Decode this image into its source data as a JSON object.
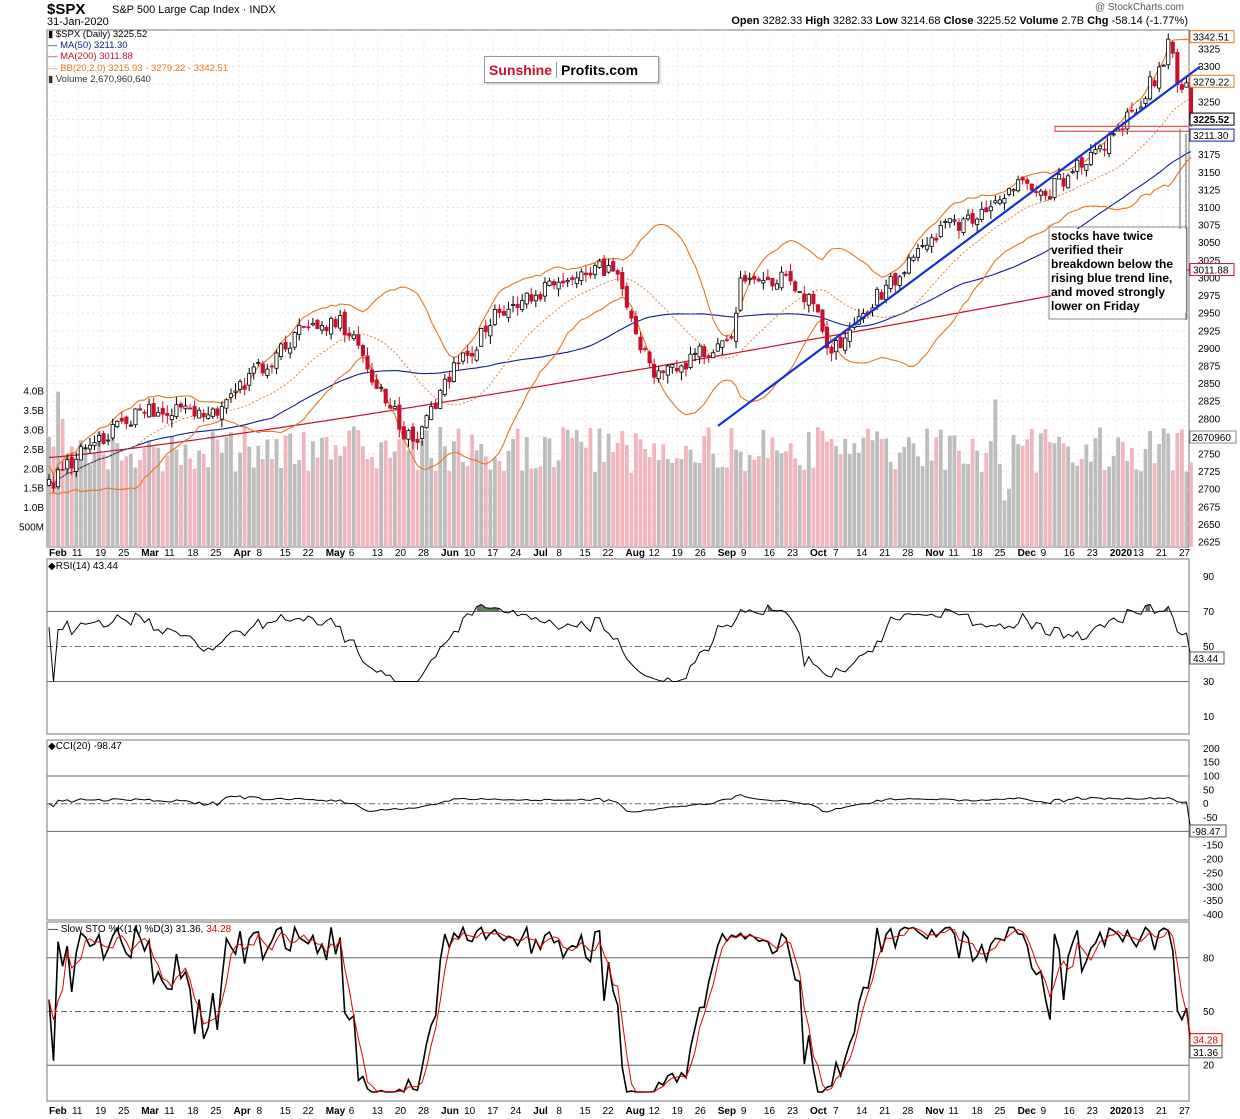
{
  "header": {
    "symbol": "$SPX",
    "name": "S&P 500 Large Cap Index",
    "exchange": "INDX",
    "date": "31-Jan-2020",
    "credit": "@ StockCharts.com",
    "ohlc_label": {
      "open": "Open",
      "high": "High",
      "low": "Low",
      "close": "Close",
      "volume": "Volume",
      "chg": "Chg"
    },
    "ohlc": {
      "open": "3282.33",
      "high": "3282.33",
      "low": "3214.68",
      "close": "3225.52",
      "volume": "2.7B",
      "chg": "-58.14 (-1.77%)"
    }
  },
  "legend": {
    "price": "$SPX (Daily) 3225.52",
    "ma50": "MA(50) 3211.30",
    "ma200": "MA(200) 3011.88",
    "bb": "BB(20,2.0) 3215.93 - 3279.22 - 3342.51",
    "volume": "Volume 2,670,960,640"
  },
  "logo": {
    "part1": "Sunshine",
    "part2": "Profits.com"
  },
  "annotation": "stocks have twice verified their breakdown below the rising blue trend line, and moved strongly lower on Friday",
  "panels": {
    "rsi_title": "RSI(14) 43.44",
    "cci_title": "CCI(20) -98.47",
    "sto_title": "Slow STO %K(14) %D(3) 31.36,",
    "sto_title_d": "34.28"
  },
  "colors": {
    "up": "#000000",
    "down": "#c8102e",
    "ma50": "#0b1f8f",
    "ma200": "#c8102e",
    "bb": "#e8741b",
    "trend": "#1230d8",
    "vol_up": "#bdbdbd",
    "vol_down": "#f1b6bd",
    "osc_pos": "#5a7d52",
    "osc_neg": "#7c4a48",
    "sto_d": "#e00000"
  },
  "chart_data": [
    {
      "type": "candlestick",
      "title": "$SPX S&P 500 Large Cap Index (Daily)",
      "x_labels": [
        "Feb",
        "11",
        "19",
        "25",
        "Mar",
        "11",
        "18",
        "25",
        "Apr",
        "8",
        "15",
        "22",
        "May",
        "6",
        "13",
        "20",
        "28",
        "Jun",
        "10",
        "17",
        "24",
        "Jul",
        "8",
        "15",
        "22",
        "Aug",
        "12",
        "19",
        "26",
        "Sep",
        "9",
        "16",
        "23",
        "Oct",
        "7",
        "14",
        "21",
        "28",
        "Nov",
        "11",
        "18",
        "25",
        "Dec",
        "9",
        "16",
        "23",
        "2020",
        "13",
        "21",
        "27"
      ],
      "y_ticks": [
        2625,
        2650,
        2675,
        2700,
        2725,
        2750,
        2775,
        2800,
        2825,
        2850,
        2875,
        2900,
        2925,
        2950,
        2975,
        3000,
        3025,
        3050,
        3075,
        3100,
        3125,
        3150,
        3175,
        3200,
        3225,
        3250,
        3275,
        3300,
        3325
      ],
      "ylim": [
        2618,
        3352
      ],
      "volume_ticks": [
        "500M",
        "1.0B",
        "1.5B",
        "2.0B",
        "2.5B",
        "3.0B",
        "3.5B",
        "4.0B"
      ],
      "price_tags": [
        "3342.51",
        "3279.22",
        "3225.52",
        "3211.30",
        "3011.88",
        "2670960"
      ],
      "series": [
        {
          "name": "$SPX close (approx. by month)",
          "x": [
            "Feb-2019",
            "Mar-2019",
            "Apr-2019",
            "May-2019",
            "Jun-2019",
            "Jul-2019",
            "Aug-2019",
            "Sep-2019",
            "Oct-2019",
            "Nov-2019",
            "Dec-2019",
            "Jan-2020"
          ],
          "values": [
            2784,
            2834,
            2946,
            2752,
            2942,
            2980,
            2926,
            2977,
            3037,
            3141,
            3231,
            3225
          ]
        },
        {
          "name": "MA(50)",
          "last": 3211.3
        },
        {
          "name": "MA(200)",
          "last": 3011.88
        },
        {
          "name": "BB upper",
          "last": 3342.51
        },
        {
          "name": "BB mid",
          "last": 3279.22
        },
        {
          "name": "BB lower",
          "last": 3215.93
        }
      ],
      "trendline": {
        "from": {
          "x": "Aug-2019",
          "y": 2790
        },
        "to": {
          "x": "Jan-2020",
          "y": 3300
        }
      },
      "support_band": 3211
    },
    {
      "type": "line",
      "title": "RSI(14)",
      "y_ticks": [
        10,
        30,
        50,
        70,
        90
      ],
      "ylim": [
        0,
        100
      ],
      "last": 43.44,
      "levels": [
        30,
        50,
        70
      ]
    },
    {
      "type": "line",
      "title": "CCI(20)",
      "y_ticks": [
        200,
        150,
        100,
        50,
        0,
        -50,
        -100,
        -150,
        -200,
        -250,
        -300,
        -350,
        -400
      ],
      "ylim": [
        -420,
        230
      ],
      "last": -98.47,
      "levels": [
        -100,
        0,
        100
      ]
    },
    {
      "type": "line",
      "title": "Slow STO %K(14) %D(3)",
      "y_ticks": [
        20,
        50,
        80
      ],
      "ylim": [
        0,
        100
      ],
      "last_k": 31.36,
      "last_d": 34.28,
      "levels": [
        20,
        50,
        80
      ]
    }
  ]
}
